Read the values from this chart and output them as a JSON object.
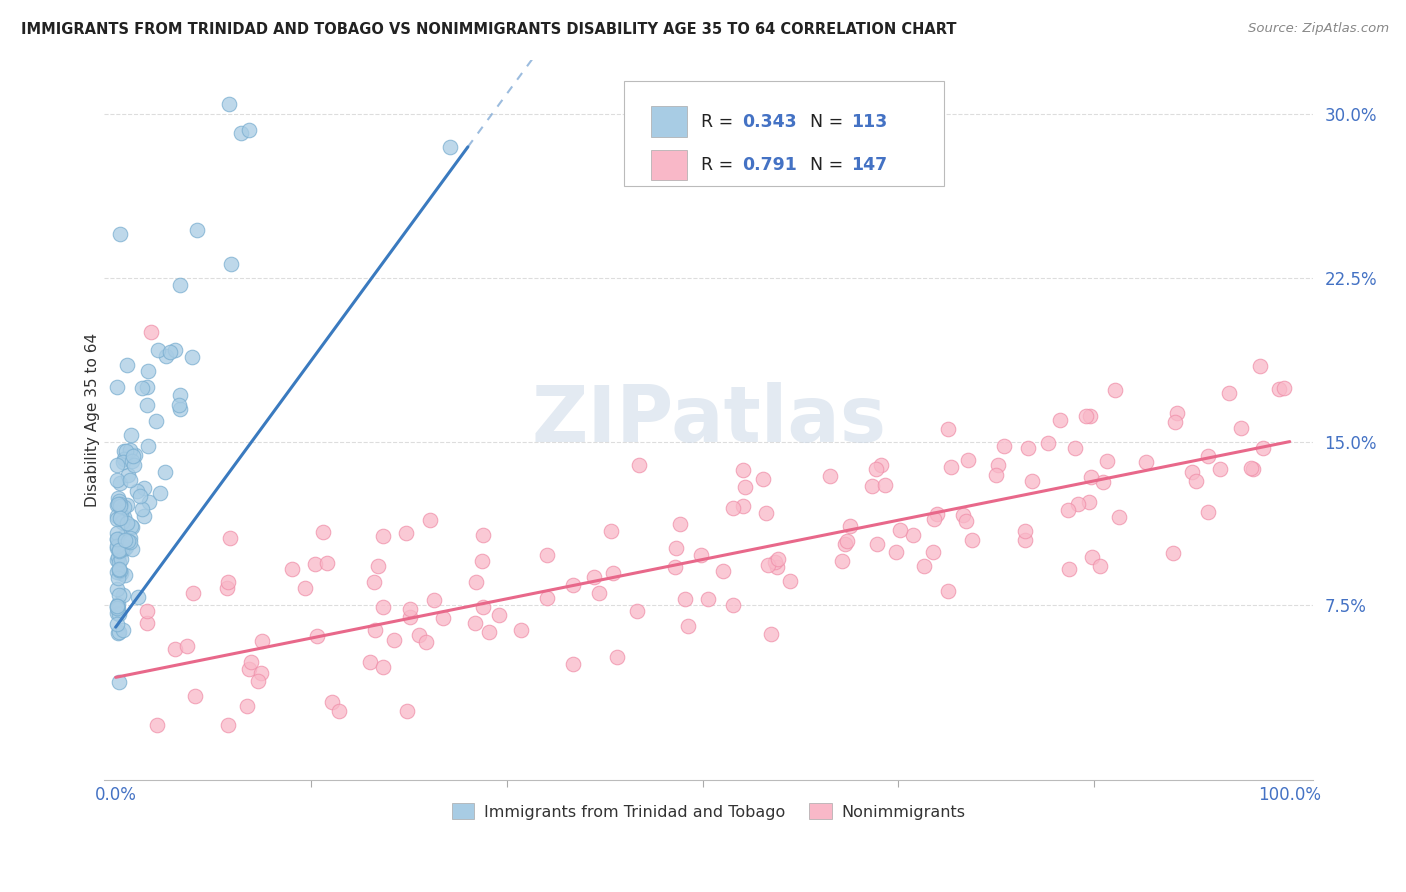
{
  "title": "IMMIGRANTS FROM TRINIDAD AND TOBAGO VS NONIMMIGRANTS DISABILITY AGE 35 TO 64 CORRELATION CHART",
  "source": "Source: ZipAtlas.com",
  "ylabel": "Disability Age 35 to 64",
  "ytick_labels": [
    "7.5%",
    "15.0%",
    "22.5%",
    "30.0%"
  ],
  "ytick_values": [
    0.075,
    0.15,
    0.225,
    0.3
  ],
  "legend_blue_R": "0.343",
  "legend_blue_N": "113",
  "legend_pink_R": "0.791",
  "legend_pink_N": "147",
  "legend_blue_label": "Immigrants from Trinidad and Tobago",
  "legend_pink_label": "Nonimmigrants",
  "blue_color": "#a8cce4",
  "pink_color": "#f9b8c8",
  "blue_line_color": "#3a7abf",
  "pink_line_color": "#e8688a",
  "blue_edge_color": "#7aaed0",
  "pink_edge_color": "#f090aa",
  "watermark_color": "#d0e4f0",
  "bg_color": "#ffffff",
  "grid_color": "#dddddd",
  "xlim": [
    0.0,
    1.0
  ],
  "ylim": [
    0.0,
    0.32
  ],
  "xtick_positions": [
    0.0,
    1.0
  ],
  "xtick_labels": [
    "0.0%",
    "100.0%"
  ],
  "blue_scatter_seed": 42,
  "pink_scatter_seed": 99
}
